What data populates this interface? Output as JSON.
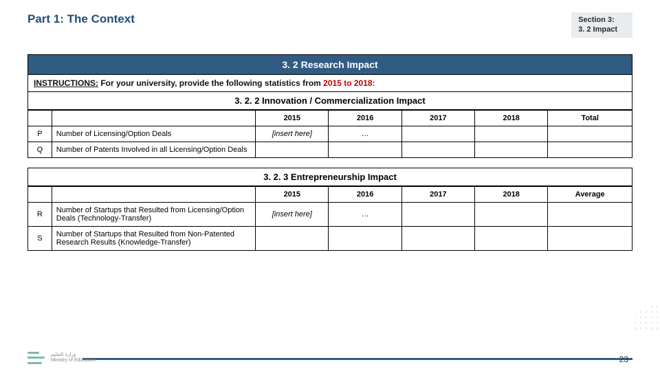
{
  "header": {
    "title": "Part 1: The Context",
    "section_line1": "Section 3:",
    "section_line2": "3. 2 Impact"
  },
  "main_heading": "3. 2 Research Impact",
  "instructions": {
    "label": "INSTRUCTIONS:",
    "text": " For your university, provide the following statistics from ",
    "range": "2015 to 2018:"
  },
  "table1": {
    "heading": "3. 2. 2 Innovation / Commercialization Impact",
    "columns": [
      "2015",
      "2016",
      "2017",
      "2018",
      "Total"
    ],
    "rows": [
      {
        "key": "P",
        "label": "Number of Licensing/Option Deals",
        "cells": [
          "[insert here]",
          "…",
          "",
          "",
          ""
        ]
      },
      {
        "key": "Q",
        "label": "Number of Patents Involved in all Licensing/Option Deals",
        "cells": [
          "",
          "",
          "",
          "",
          ""
        ]
      }
    ]
  },
  "table2": {
    "heading": "3. 2. 3 Entrepreneurship Impact",
    "columns": [
      "2015",
      "2016",
      "2017",
      "2018",
      "Average"
    ],
    "rows": [
      {
        "key": "R",
        "label": "Number of Startups that Resulted from Licensing/Option Deals (Technology-Transfer)",
        "cells": [
          "[insert here]",
          "…",
          "",
          "",
          ""
        ]
      },
      {
        "key": "S",
        "label": "Number of Startups that Resulted from Non-Patented Research Results (Knowledge-Transfer)",
        "cells": [
          "",
          "",
          "",
          "",
          ""
        ]
      }
    ]
  },
  "page_number": "23",
  "colors": {
    "title": "#1f4e79",
    "banner_bg": "#305c84",
    "footer_line": "#2f5c88",
    "red": "#c00000",
    "badge_bg": "#e8ecef"
  }
}
